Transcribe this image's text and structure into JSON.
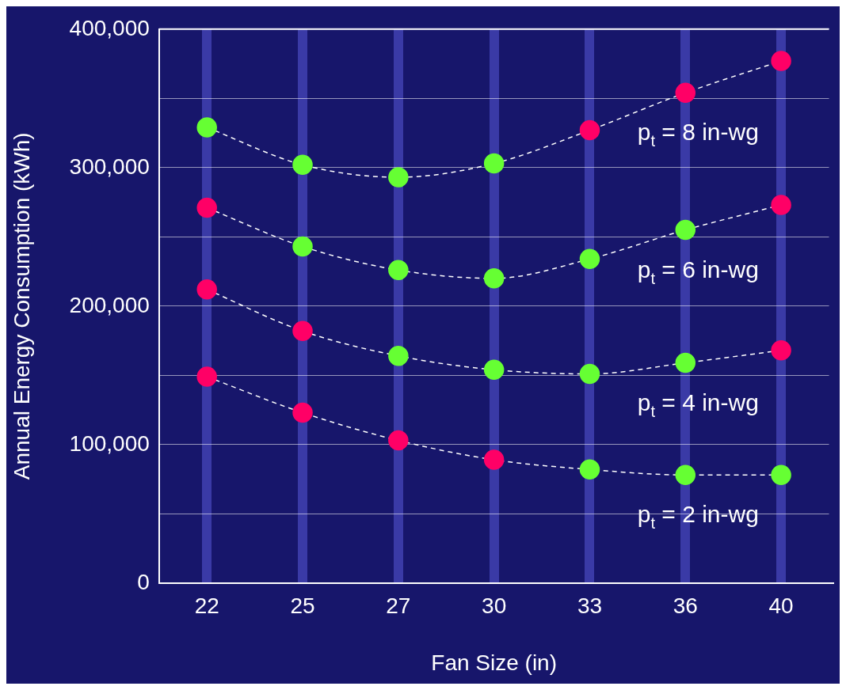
{
  "chart_data": {
    "type": "line",
    "xlabel": "Fan Size (in)",
    "ylabel": "Annual Energy Consumption (kWh)",
    "categories": [
      "22",
      "25",
      "27",
      "30",
      "33",
      "36",
      "40"
    ],
    "ylim": [
      0,
      400000
    ],
    "yticks": [
      {
        "value": 0,
        "label": "0"
      },
      {
        "value": 50000,
        "label": null
      },
      {
        "value": 100000,
        "label": "100,000"
      },
      {
        "value": 150000,
        "label": null
      },
      {
        "value": 200000,
        "label": "200,000"
      },
      {
        "value": 250000,
        "label": null
      },
      {
        "value": 300000,
        "label": "300,000"
      },
      {
        "value": 350000,
        "label": null
      },
      {
        "value": 400000,
        "label": "400,000"
      }
    ],
    "grid": true,
    "legend": false,
    "marker": "circle",
    "line_style": "dashed",
    "series": [
      {
        "name": "p$_{t}$ = 8 in-wg",
        "color": "#ffffff",
        "values": [
          329000,
          302000,
          293000,
          303000,
          327000,
          354000,
          377000
        ],
        "colors": [
          "#66ff33",
          "#66ff33",
          "#66ff33",
          "#66ff33",
          "#ff0066",
          "#ff0066",
          "#ff0066"
        ]
      },
      {
        "name": "p$_{t}$ = 6 in-wg",
        "color": "#ffffff",
        "values": [
          271000,
          243000,
          226000,
          220000,
          234000,
          255000,
          273000
        ],
        "colors": [
          "#ff0066",
          "#66ff33",
          "#66ff33",
          "#66ff33",
          "#66ff33",
          "#66ff33",
          "#ff0066"
        ]
      },
      {
        "name": "p$_{t}$ = 4 in-wg",
        "color": "#ffffff",
        "values": [
          212000,
          182000,
          164000,
          154000,
          151000,
          159000,
          168000
        ],
        "colors": [
          "#ff0066",
          "#ff0066",
          "#66ff33",
          "#66ff33",
          "#66ff33",
          "#66ff33",
          "#ff0066"
        ]
      },
      {
        "name": "p$_{t}$ = 2 in-wg",
        "color": "#ffffff",
        "values": [
          149000,
          123000,
          103000,
          89000,
          82000,
          78000,
          78000
        ],
        "colors": [
          "#ff0066",
          "#ff0066",
          "#ff0066",
          "#ff0066",
          "#66ff33",
          "#66ff33",
          "#66ff33"
        ]
      }
    ]
  }
}
